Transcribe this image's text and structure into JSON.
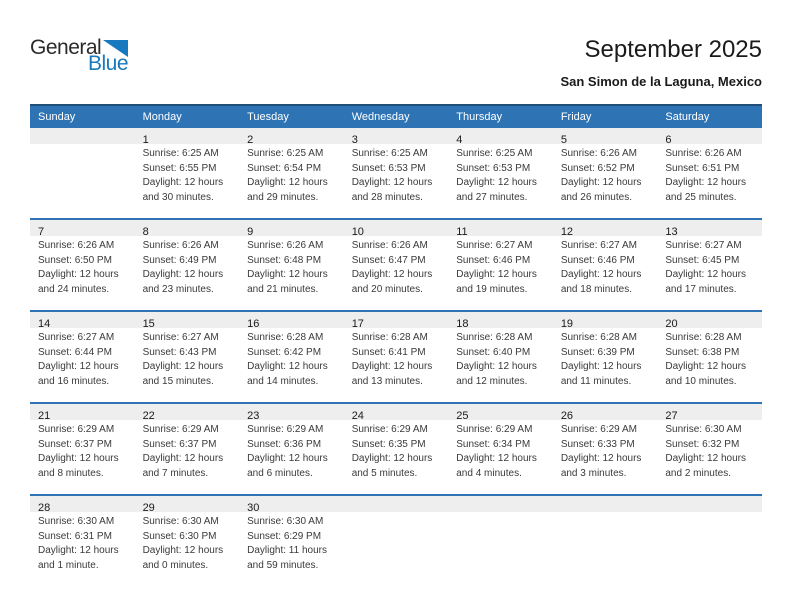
{
  "logo": {
    "part1": "General",
    "part2": "Blue"
  },
  "header": {
    "title": "September 2025",
    "subtitle": "San Simon de la Laguna, Mexico"
  },
  "colors": {
    "header_blue": "#2e74b5",
    "header_top_border": "#1f4e79",
    "row_divider_blue": "#2e74b5",
    "number_band_gray": "#eeeeee",
    "logo_blue": "#1779be"
  },
  "calendar": {
    "day_headers": [
      "Sunday",
      "Monday",
      "Tuesday",
      "Wednesday",
      "Thursday",
      "Friday",
      "Saturday"
    ],
    "weeks": [
      {
        "days": [
          {},
          {
            "day": "1",
            "sunrise": "Sunrise: 6:25 AM",
            "sunset": "Sunset: 6:55 PM",
            "daylight1": "Daylight: 12 hours",
            "daylight2": "and 30 minutes."
          },
          {
            "day": "2",
            "sunrise": "Sunrise: 6:25 AM",
            "sunset": "Sunset: 6:54 PM",
            "daylight1": "Daylight: 12 hours",
            "daylight2": "and 29 minutes."
          },
          {
            "day": "3",
            "sunrise": "Sunrise: 6:25 AM",
            "sunset": "Sunset: 6:53 PM",
            "daylight1": "Daylight: 12 hours",
            "daylight2": "and 28 minutes."
          },
          {
            "day": "4",
            "sunrise": "Sunrise: 6:25 AM",
            "sunset": "Sunset: 6:53 PM",
            "daylight1": "Daylight: 12 hours",
            "daylight2": "and 27 minutes."
          },
          {
            "day": "5",
            "sunrise": "Sunrise: 6:26 AM",
            "sunset": "Sunset: 6:52 PM",
            "daylight1": "Daylight: 12 hours",
            "daylight2": "and 26 minutes."
          },
          {
            "day": "6",
            "sunrise": "Sunrise: 6:26 AM",
            "sunset": "Sunset: 6:51 PM",
            "daylight1": "Daylight: 12 hours",
            "daylight2": "and 25 minutes."
          }
        ]
      },
      {
        "days": [
          {
            "day": "7",
            "sunrise": "Sunrise: 6:26 AM",
            "sunset": "Sunset: 6:50 PM",
            "daylight1": "Daylight: 12 hours",
            "daylight2": "and 24 minutes."
          },
          {
            "day": "8",
            "sunrise": "Sunrise: 6:26 AM",
            "sunset": "Sunset: 6:49 PM",
            "daylight1": "Daylight: 12 hours",
            "daylight2": "and 23 minutes."
          },
          {
            "day": "9",
            "sunrise": "Sunrise: 6:26 AM",
            "sunset": "Sunset: 6:48 PM",
            "daylight1": "Daylight: 12 hours",
            "daylight2": "and 21 minutes."
          },
          {
            "day": "10",
            "sunrise": "Sunrise: 6:26 AM",
            "sunset": "Sunset: 6:47 PM",
            "daylight1": "Daylight: 12 hours",
            "daylight2": "and 20 minutes."
          },
          {
            "day": "11",
            "sunrise": "Sunrise: 6:27 AM",
            "sunset": "Sunset: 6:46 PM",
            "daylight1": "Daylight: 12 hours",
            "daylight2": "and 19 minutes."
          },
          {
            "day": "12",
            "sunrise": "Sunrise: 6:27 AM",
            "sunset": "Sunset: 6:46 PM",
            "daylight1": "Daylight: 12 hours",
            "daylight2": "and 18 minutes."
          },
          {
            "day": "13",
            "sunrise": "Sunrise: 6:27 AM",
            "sunset": "Sunset: 6:45 PM",
            "daylight1": "Daylight: 12 hours",
            "daylight2": "and 17 minutes."
          }
        ]
      },
      {
        "days": [
          {
            "day": "14",
            "sunrise": "Sunrise: 6:27 AM",
            "sunset": "Sunset: 6:44 PM",
            "daylight1": "Daylight: 12 hours",
            "daylight2": "and 16 minutes."
          },
          {
            "day": "15",
            "sunrise": "Sunrise: 6:27 AM",
            "sunset": "Sunset: 6:43 PM",
            "daylight1": "Daylight: 12 hours",
            "daylight2": "and 15 minutes."
          },
          {
            "day": "16",
            "sunrise": "Sunrise: 6:28 AM",
            "sunset": "Sunset: 6:42 PM",
            "daylight1": "Daylight: 12 hours",
            "daylight2": "and 14 minutes."
          },
          {
            "day": "17",
            "sunrise": "Sunrise: 6:28 AM",
            "sunset": "Sunset: 6:41 PM",
            "daylight1": "Daylight: 12 hours",
            "daylight2": "and 13 minutes."
          },
          {
            "day": "18",
            "sunrise": "Sunrise: 6:28 AM",
            "sunset": "Sunset: 6:40 PM",
            "daylight1": "Daylight: 12 hours",
            "daylight2": "and 12 minutes."
          },
          {
            "day": "19",
            "sunrise": "Sunrise: 6:28 AM",
            "sunset": "Sunset: 6:39 PM",
            "daylight1": "Daylight: 12 hours",
            "daylight2": "and 11 minutes."
          },
          {
            "day": "20",
            "sunrise": "Sunrise: 6:28 AM",
            "sunset": "Sunset: 6:38 PM",
            "daylight1": "Daylight: 12 hours",
            "daylight2": "and 10 minutes."
          }
        ]
      },
      {
        "days": [
          {
            "day": "21",
            "sunrise": "Sunrise: 6:29 AM",
            "sunset": "Sunset: 6:37 PM",
            "daylight1": "Daylight: 12 hours",
            "daylight2": "and 8 minutes."
          },
          {
            "day": "22",
            "sunrise": "Sunrise: 6:29 AM",
            "sunset": "Sunset: 6:37 PM",
            "daylight1": "Daylight: 12 hours",
            "daylight2": "and 7 minutes."
          },
          {
            "day": "23",
            "sunrise": "Sunrise: 6:29 AM",
            "sunset": "Sunset: 6:36 PM",
            "daylight1": "Daylight: 12 hours",
            "daylight2": "and 6 minutes."
          },
          {
            "day": "24",
            "sunrise": "Sunrise: 6:29 AM",
            "sunset": "Sunset: 6:35 PM",
            "daylight1": "Daylight: 12 hours",
            "daylight2": "and 5 minutes."
          },
          {
            "day": "25",
            "sunrise": "Sunrise: 6:29 AM",
            "sunset": "Sunset: 6:34 PM",
            "daylight1": "Daylight: 12 hours",
            "daylight2": "and 4 minutes."
          },
          {
            "day": "26",
            "sunrise": "Sunrise: 6:29 AM",
            "sunset": "Sunset: 6:33 PM",
            "daylight1": "Daylight: 12 hours",
            "daylight2": "and 3 minutes."
          },
          {
            "day": "27",
            "sunrise": "Sunrise: 6:30 AM",
            "sunset": "Sunset: 6:32 PM",
            "daylight1": "Daylight: 12 hours",
            "daylight2": "and 2 minutes."
          }
        ]
      },
      {
        "days": [
          {
            "day": "28",
            "sunrise": "Sunrise: 6:30 AM",
            "sunset": "Sunset: 6:31 PM",
            "daylight1": "Daylight: 12 hours",
            "daylight2": "and 1 minute."
          },
          {
            "day": "29",
            "sunrise": "Sunrise: 6:30 AM",
            "sunset": "Sunset: 6:30 PM",
            "daylight1": "Daylight: 12 hours",
            "daylight2": "and 0 minutes."
          },
          {
            "day": "30",
            "sunrise": "Sunrise: 6:30 AM",
            "sunset": "Sunset: 6:29 PM",
            "daylight1": "Daylight: 11 hours",
            "daylight2": "and 59 minutes."
          },
          {},
          {},
          {},
          {}
        ]
      }
    ]
  }
}
